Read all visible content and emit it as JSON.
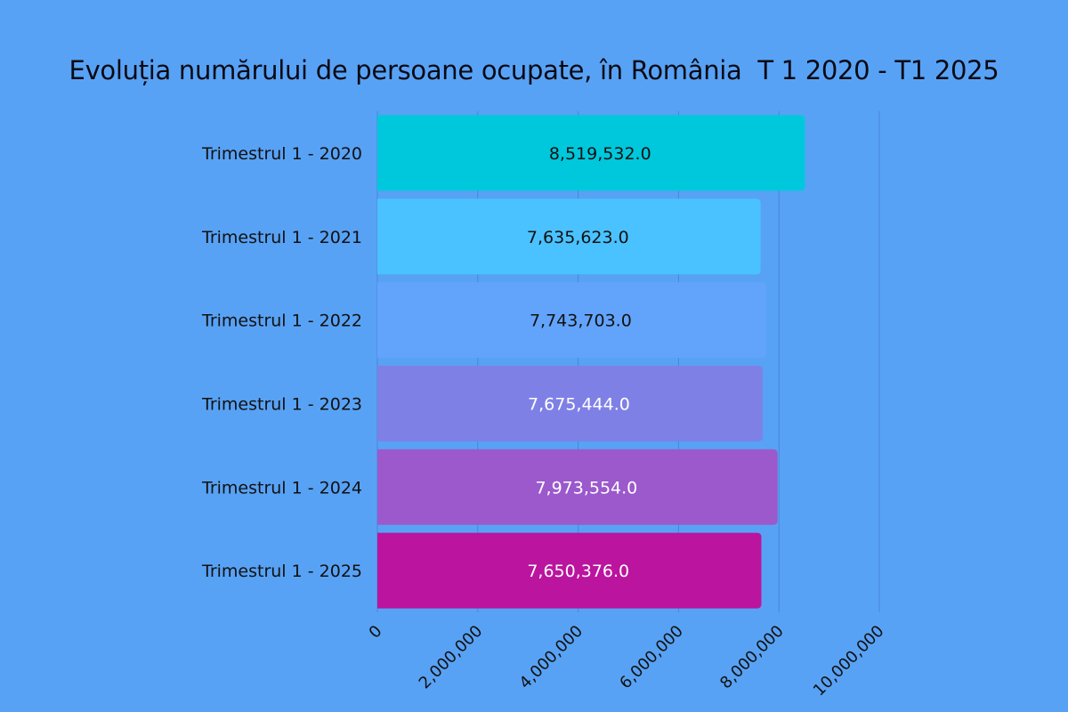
{
  "chart_data": {
    "type": "bar",
    "orientation": "horizontal",
    "title": "Evoluția numărului de persoane ocupate, în România  T 1 2020 - T1 2025",
    "categories": [
      "Trimestrul 1 - 2020",
      "Trimestrul 1 - 2021",
      "Trimestrul 1 - 2022",
      "Trimestrul 1 - 2023",
      "Trimestrul 1 - 2024",
      "Trimestrul 1 - 2025"
    ],
    "values": [
      8519532,
      7635623,
      7743703,
      7675444,
      7973554,
      7650376
    ],
    "value_labels": [
      "8,519,532.0",
      "7,635,623.0",
      "7,743,703.0",
      "7,675,444.0",
      "7,973,554.0",
      "7,650,376.0"
    ],
    "colors": [
      "#00c8dc",
      "#4ac2ff",
      "#62a4fb",
      "#7f80e6",
      "#9b59cc",
      "#bb149f"
    ],
    "label_colors": [
      "#111111",
      "#111111",
      "#111111",
      "#ffffff",
      "#ffffff",
      "#ffffff"
    ],
    "xlim": [
      0,
      10000000
    ],
    "xticks": [
      0,
      2000000,
      4000000,
      6000000,
      8000000,
      10000000
    ],
    "xtick_labels": [
      "0",
      "2,000,000",
      "4,000,000",
      "6,000,000",
      "8,000,000",
      "10,000,000"
    ],
    "grid": true,
    "xlabel": "",
    "ylabel": ""
  }
}
